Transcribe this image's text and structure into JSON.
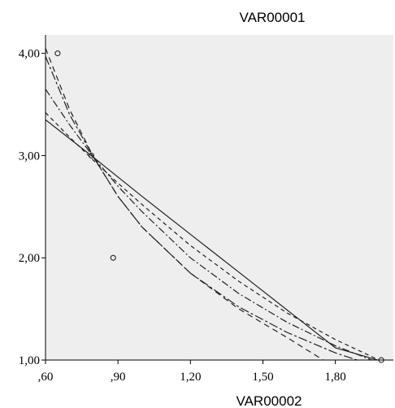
{
  "chart_data": {
    "type": "scatter",
    "title": "VAR00001",
    "xlabel": "VAR00002",
    "ylabel": "",
    "xlim": [
      0.6,
      2.04
    ],
    "ylim": [
      1.0,
      4.18
    ],
    "x_ticks": [
      0.6,
      0.9,
      1.2,
      1.5,
      1.8
    ],
    "x_tick_labels": [
      ",60",
      ",90",
      "1,20",
      "1,50",
      "1,80"
    ],
    "y_ticks": [
      1.0,
      2.0,
      3.0,
      4.0
    ],
    "y_tick_labels": [
      "1,00",
      "2,00",
      "3,00",
      "4,00"
    ],
    "grid": false,
    "plot_background": "#eeeeee",
    "points": [
      {
        "x": 0.65,
        "y": 4.0
      },
      {
        "x": 0.79,
        "y": 3.0
      },
      {
        "x": 0.88,
        "y": 2.0
      },
      {
        "x": 1.99,
        "y": 1.0
      }
    ],
    "series": [
      {
        "style": "solid",
        "x": [
          0.6,
          0.8,
          1.0,
          1.2,
          1.4,
          1.6,
          1.8,
          1.99
        ],
        "y": [
          3.35,
          2.98,
          2.6,
          2.23,
          1.86,
          1.49,
          1.12,
          0.99
        ]
      },
      {
        "style": "dashdot",
        "x": [
          0.6,
          0.7,
          0.8,
          0.9,
          1.0,
          1.2,
          1.4,
          1.6,
          1.8,
          1.95
        ],
        "y": [
          3.65,
          3.3,
          2.98,
          2.7,
          2.45,
          2.0,
          1.65,
          1.37,
          1.14,
          1.0
        ]
      },
      {
        "style": "dashed",
        "x": [
          0.6,
          0.7,
          0.8,
          0.9,
          1.0,
          1.2,
          1.4,
          1.6,
          1.75
        ],
        "y": [
          4.05,
          3.45,
          2.98,
          2.6,
          2.3,
          1.85,
          1.5,
          1.22,
          1.0
        ]
      },
      {
        "style": "dashdot2",
        "x": [
          0.6,
          0.7,
          0.8,
          0.9,
          1.0,
          1.2,
          1.4,
          1.6,
          1.8,
          1.89
        ],
        "y": [
          3.97,
          3.4,
          2.98,
          2.6,
          2.3,
          1.85,
          1.52,
          1.27,
          1.07,
          1.0
        ]
      },
      {
        "style": "dashed2",
        "x": [
          0.6,
          0.7,
          0.8,
          0.9,
          1.0,
          1.2,
          1.4,
          1.6,
          1.8,
          1.99
        ],
        "y": [
          3.42,
          3.18,
          2.95,
          2.73,
          2.52,
          2.12,
          1.77,
          1.46,
          1.2,
          0.99
        ]
      }
    ]
  }
}
